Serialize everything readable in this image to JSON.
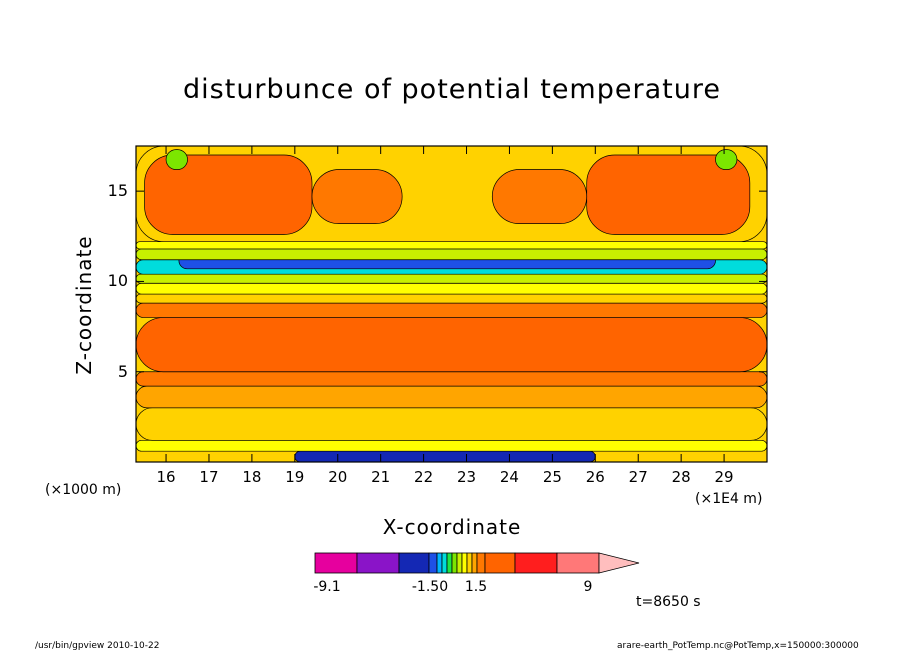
{
  "chart_data": {
    "type": "heatmap",
    "title": "disturbunce of potential temperature",
    "xlabel": "X-coordinate",
    "ylabel": "Z-coordinate",
    "x_unit_note": "(×1E4 m)",
    "y_unit_note": "(×1000 m)",
    "xlim": [
      15.3,
      30.0
    ],
    "ylim": [
      0,
      17.5
    ],
    "x_ticks": [
      "16",
      "17",
      "18",
      "19",
      "20",
      "21",
      "22",
      "23",
      "24",
      "25",
      "26",
      "27",
      "28",
      "29"
    ],
    "y_ticks": [
      "5",
      "10",
      "15"
    ],
    "colorbar": {
      "levels": [
        -9.1,
        -6.4,
        -3.8,
        -1.5,
        -1.2,
        -0.9,
        -0.6,
        -0.3,
        0,
        0.3,
        0.6,
        0.9,
        1.2,
        1.5,
        3.8,
        6.4,
        9
      ],
      "colors": [
        "#e6009e",
        "#8a14c8",
        "#1428b4",
        "#1e50e6",
        "#00b4ff",
        "#00dcdc",
        "#1ee646",
        "#7ce600",
        "#c8f000",
        "#ffff00",
        "#ffd200",
        "#ffa500",
        "#ff7800",
        "#ff6400",
        "#ff1e1e",
        "#ff7878",
        "#ffbebe"
      ],
      "tick_labels": [
        "-9.1",
        "-1.50",
        "1.5",
        "9"
      ]
    },
    "bands": [
      {
        "z": [
          0.0,
          0.6
        ],
        "level": "-3.8",
        "x": [
          19.0,
          26.0
        ]
      },
      {
        "z": [
          0.6,
          1.2
        ],
        "level": "0.3",
        "x": [
          15.3,
          30.0
        ]
      },
      {
        "z": [
          1.2,
          3.0
        ],
        "level": "0.6",
        "x": [
          15.3,
          30.0
        ]
      },
      {
        "z": [
          3.0,
          4.2
        ],
        "level": "0.9",
        "x": [
          15.3,
          30.0
        ]
      },
      {
        "z": [
          4.2,
          5.0
        ],
        "level": "1.2",
        "x": [
          15.3,
          30.0
        ]
      },
      {
        "z": [
          5.0,
          8.0
        ],
        "level": "1.5",
        "x": [
          15.3,
          30.0
        ]
      },
      {
        "z": [
          8.0,
          8.8
        ],
        "level": "1.2",
        "x": [
          15.3,
          30.0
        ]
      },
      {
        "z": [
          8.8,
          9.3
        ],
        "level": "0.6",
        "x": [
          15.3,
          30.0
        ]
      },
      {
        "z": [
          9.3,
          9.9
        ],
        "level": "0.3",
        "x": [
          15.3,
          30.0
        ]
      },
      {
        "z": [
          9.9,
          10.4
        ],
        "level": "0",
        "x": [
          15.3,
          30.0
        ]
      },
      {
        "z": [
          10.4,
          11.2
        ],
        "level": "-0.9",
        "x": [
          15.3,
          30.0
        ]
      },
      {
        "z": [
          10.7,
          11.6
        ],
        "level": "-1.5",
        "x": [
          16.3,
          28.8
        ]
      },
      {
        "z": [
          11.2,
          11.8
        ],
        "level": "0",
        "x": [
          15.3,
          30.0
        ]
      },
      {
        "z": [
          11.8,
          12.2
        ],
        "level": "0.3",
        "x": [
          15.3,
          30.0
        ]
      },
      {
        "z": [
          12.2,
          17.5
        ],
        "level": "0.6",
        "x": [
          15.3,
          30.0
        ]
      },
      {
        "z": [
          12.6,
          17.0
        ],
        "level": "1.5",
        "x": [
          15.5,
          19.4
        ]
      },
      {
        "z": [
          12.6,
          17.0
        ],
        "level": "1.5",
        "x": [
          25.8,
          29.6
        ]
      },
      {
        "z": [
          13.2,
          16.2
        ],
        "level": "1.2",
        "x": [
          19.4,
          21.5
        ]
      },
      {
        "z": [
          13.2,
          16.2
        ],
        "level": "1.2",
        "x": [
          23.6,
          25.8
        ]
      },
      {
        "z": [
          16.2,
          17.3
        ],
        "level": "-0.3",
        "x": [
          16.0,
          16.5
        ]
      },
      {
        "z": [
          16.2,
          17.3
        ],
        "level": "-0.3",
        "x": [
          28.8,
          29.3
        ]
      }
    ]
  },
  "colorbar_labels": {
    "a": "-9.1",
    "b": "-1.50",
    "c": "1.5",
    "d": "9"
  },
  "time_label": "t=8650 s",
  "footer_left": "/usr/bin/gpview   2010-10-22",
  "footer_right": "arare-earth_PotTemp.nc@PotTemp,x=150000:300000"
}
